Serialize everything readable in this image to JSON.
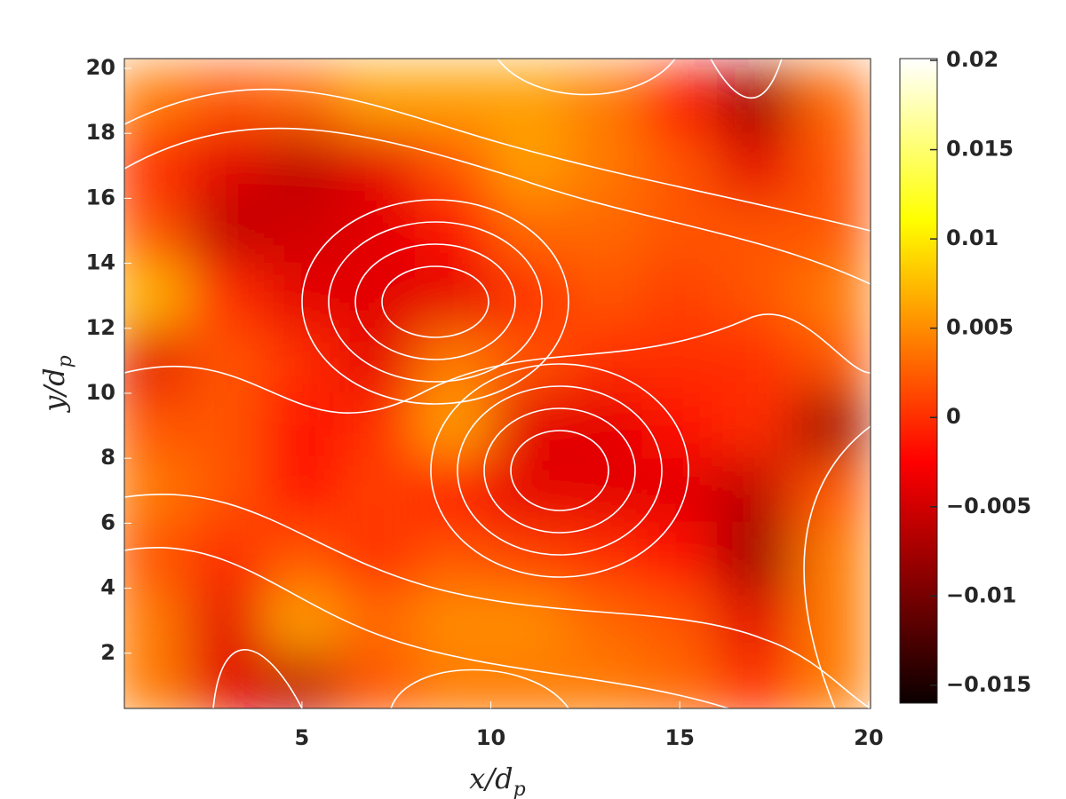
{
  "chart_data": {
    "type": "heatmap",
    "colormap": "hot",
    "x": [
      1,
      3,
      5,
      7,
      9,
      11,
      13,
      15,
      17,
      19
    ],
    "y": [
      19,
      17,
      15,
      13,
      11,
      9,
      7,
      5,
      3,
      1
    ],
    "z": [
      [
        0.004,
        0.002,
        0.003,
        0.006,
        0.006,
        0.006,
        0.004,
        -0.002,
        -0.008,
        0.003
      ],
      [
        0.0,
        -0.004,
        -0.006,
        -0.004,
        0.002,
        0.006,
        0.004,
        0.002,
        -0.004,
        0.002
      ],
      [
        0.002,
        -0.006,
        -0.005,
        -0.004,
        -0.002,
        0.003,
        0.003,
        0.002,
        0.002,
        0.002
      ],
      [
        0.007,
        0.0,
        -0.004,
        -0.004,
        -0.004,
        0.0,
        0.002,
        0.001,
        0.002,
        0.004
      ],
      [
        -0.004,
        0.002,
        0.0,
        -0.004,
        0.004,
        0.002,
        0.0,
        0.0,
        0.0,
        0.002
      ],
      [
        0.002,
        0.002,
        -0.002,
        0.0,
        0.006,
        -0.004,
        -0.004,
        -0.002,
        0.0,
        -0.008
      ],
      [
        0.004,
        0.002,
        -0.002,
        0.001,
        -0.002,
        -0.004,
        -0.004,
        -0.004,
        -0.006,
        0.002
      ],
      [
        0.002,
        0.0,
        0.002,
        0.0,
        0.002,
        0.001,
        0.0,
        -0.002,
        -0.008,
        0.004
      ],
      [
        0.004,
        -0.004,
        0.006,
        0.003,
        0.005,
        0.005,
        0.003,
        0.002,
        -0.004,
        0.004
      ],
      [
        0.004,
        -0.004,
        -0.006,
        0.002,
        0.004,
        0.004,
        0.004,
        0.003,
        0.0,
        0.004
      ]
    ],
    "xlim": [
      0.3,
      20.05
    ],
    "ylim": [
      0.3,
      20.3
    ],
    "xticks": [
      5,
      10,
      15,
      20
    ],
    "yticks": [
      2,
      4,
      6,
      8,
      10,
      12,
      14,
      16,
      18,
      20
    ],
    "clim": [
      -0.016,
      0.0201
    ],
    "cticks": [
      0.02,
      0.015,
      0.01,
      0.005,
      0,
      {
        "value": -0.005,
        "label": "−0.005"
      },
      {
        "value": -0.01,
        "label": "−0.01"
      },
      {
        "value": -0.015,
        "label": "−0.015"
      }
    ],
    "xlabel": {
      "main": "x/d",
      "sub": "p"
    },
    "ylabel": {
      "main": "y/d",
      "sub": "p"
    }
  }
}
